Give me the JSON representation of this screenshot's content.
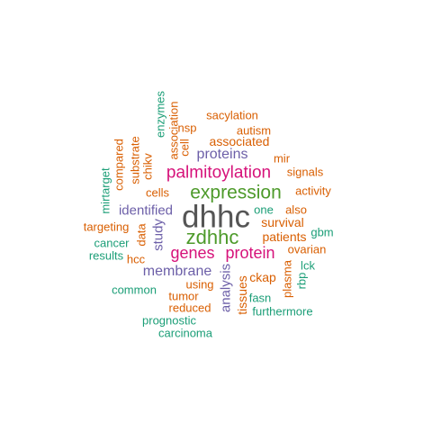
{
  "palette": {
    "gray": "#555555",
    "green": "#4D9A2A",
    "magenta": "#D6127A",
    "purple": "#6C5FA8",
    "orange": "#D95F02",
    "teal": "#1B9E77"
  },
  "words": [
    {
      "text": "dhhc",
      "color": "#555555"
    },
    {
      "text": "zdhhc",
      "color": "#4D9A2A"
    },
    {
      "text": "expression",
      "color": "#4D9A2A"
    },
    {
      "text": "palmitoylation",
      "color": "#D6127A"
    },
    {
      "text": "genes",
      "color": "#D6127A"
    },
    {
      "text": "protein",
      "color": "#D6127A"
    },
    {
      "text": "proteins",
      "color": "#6C5FA8"
    },
    {
      "text": "membrane",
      "color": "#6C5FA8"
    },
    {
      "text": "identified",
      "color": "#6C5FA8"
    },
    {
      "text": "study",
      "color": "#6C5FA8"
    },
    {
      "text": "analysis",
      "color": "#6C5FA8"
    },
    {
      "text": "sacylation",
      "color": "#D95F02"
    },
    {
      "text": "autism",
      "color": "#D95F02"
    },
    {
      "text": "associated",
      "color": "#D95F02"
    },
    {
      "text": "mir",
      "color": "#D95F02"
    },
    {
      "text": "signals",
      "color": "#D95F02"
    },
    {
      "text": "activity",
      "color": "#D95F02"
    },
    {
      "text": "cells",
      "color": "#D95F02"
    },
    {
      "text": "survival",
      "color": "#D95F02"
    },
    {
      "text": "patients",
      "color": "#D95F02"
    },
    {
      "text": "also",
      "color": "#D95F02"
    },
    {
      "text": "ovarian",
      "color": "#D95F02"
    },
    {
      "text": "targeting",
      "color": "#D95F02"
    },
    {
      "text": "hcc",
      "color": "#D95F02"
    },
    {
      "text": "tumor",
      "color": "#D95F02"
    },
    {
      "text": "using",
      "color": "#D95F02"
    },
    {
      "text": "reduced",
      "color": "#D95F02"
    },
    {
      "text": "ckap",
      "color": "#D95F02"
    },
    {
      "text": "plasma",
      "color": "#D95F02"
    },
    {
      "text": "tissues",
      "color": "#D95F02"
    },
    {
      "text": "compared",
      "color": "#D95F02"
    },
    {
      "text": "substrate",
      "color": "#D95F02"
    },
    {
      "text": "association",
      "color": "#D95F02"
    },
    {
      "text": "cell",
      "color": "#D95F02"
    },
    {
      "text": "chikv",
      "color": "#D95F02"
    },
    {
      "text": "data",
      "color": "#D95F02"
    },
    {
      "text": "nsp",
      "color": "#D95F02"
    },
    {
      "text": "enzymes",
      "color": "#1B9E77"
    },
    {
      "text": "mirtarget",
      "color": "#1B9E77"
    },
    {
      "text": "cancer",
      "color": "#1B9E77"
    },
    {
      "text": "results",
      "color": "#1B9E77"
    },
    {
      "text": "common",
      "color": "#1B9E77"
    },
    {
      "text": "prognostic",
      "color": "#1B9E77"
    },
    {
      "text": "carcinoma",
      "color": "#1B9E77"
    },
    {
      "text": "one",
      "color": "#1B9E77"
    },
    {
      "text": "gbm",
      "color": "#1B9E77"
    },
    {
      "text": "lck",
      "color": "#1B9E77"
    },
    {
      "text": "rbp",
      "color": "#1B9E77"
    },
    {
      "text": "fasn",
      "color": "#1B9E77"
    },
    {
      "text": "furthermore",
      "color": "#1B9E77"
    }
  ]
}
